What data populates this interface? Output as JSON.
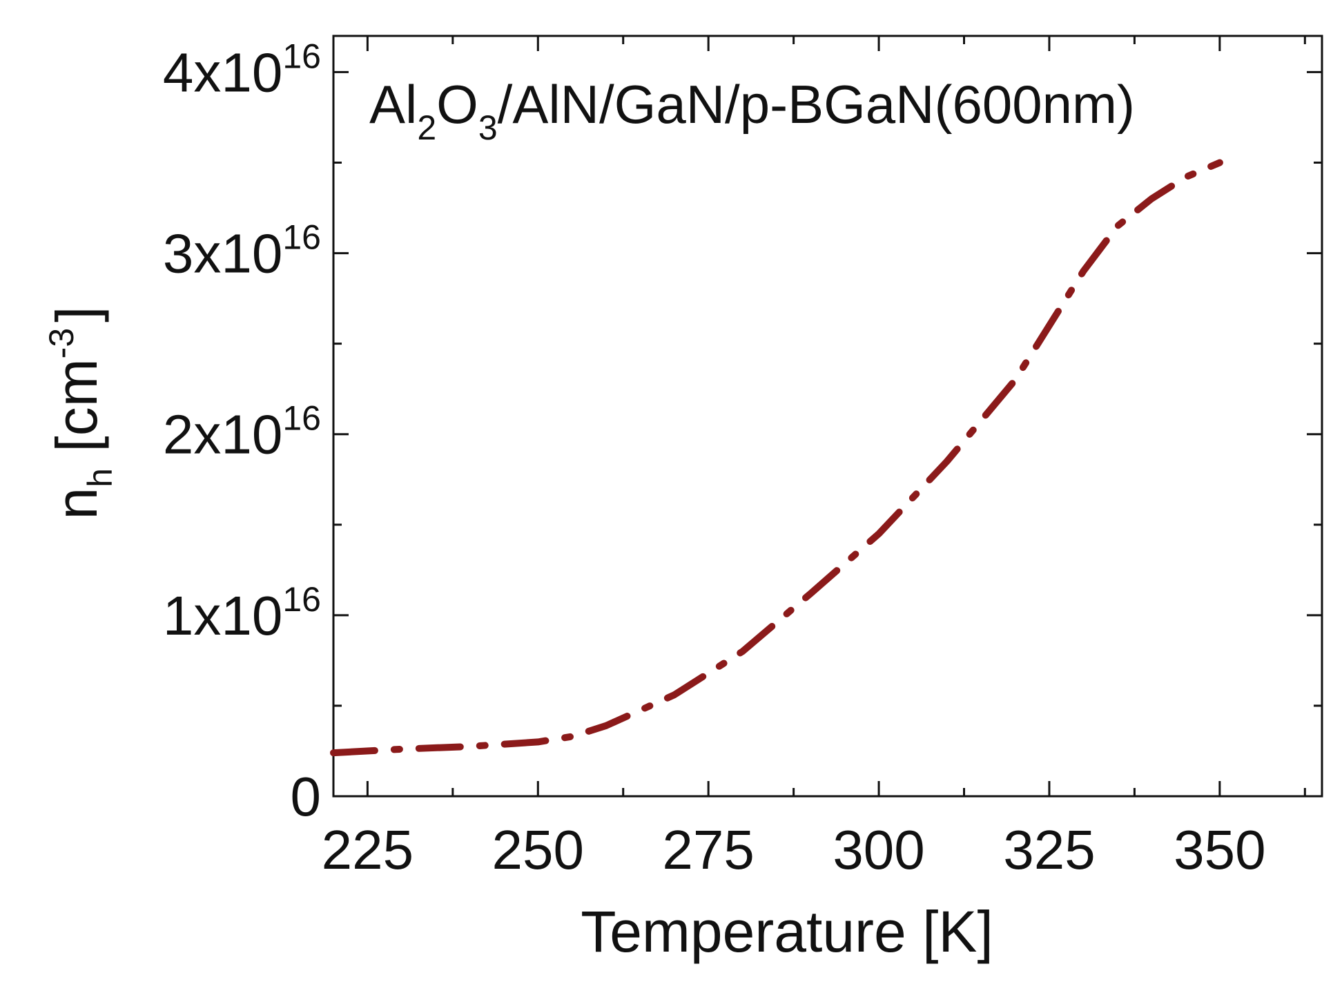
{
  "chart_data": {
    "type": "line",
    "annotation": {
      "parts": [
        {
          "text": "Al",
          "style": "normal"
        },
        {
          "text": "2",
          "style": "sub"
        },
        {
          "text": "O",
          "style": "normal"
        },
        {
          "text": "3",
          "style": "sub"
        },
        {
          "text": "/AlN/GaN/p-BGaN(600nm)",
          "style": "normal"
        }
      ]
    },
    "xlabel": "Temperature [K]",
    "ylabel": {
      "base": "n",
      "sub": "h",
      "unit_open": " [cm",
      "unit_sup": "-3",
      "unit_close": "]"
    },
    "xlim": [
      220,
      365
    ],
    "ylim": [
      0,
      4.2e+16
    ],
    "xticks": [
      {
        "value": 225,
        "label": "225"
      },
      {
        "value": 250,
        "label": "250"
      },
      {
        "value": 275,
        "label": "275"
      },
      {
        "value": 300,
        "label": "300"
      },
      {
        "value": 325,
        "label": "325"
      },
      {
        "value": 350,
        "label": "350"
      }
    ],
    "yticks": [
      {
        "value": 0,
        "base": "0",
        "exp": ""
      },
      {
        "value": 1e+16,
        "base": "1x10",
        "exp": "16"
      },
      {
        "value": 2e+16,
        "base": "2x10",
        "exp": "16"
      },
      {
        "value": 3e+16,
        "base": "3x10",
        "exp": "16"
      },
      {
        "value": 4e+16,
        "base": "4x10",
        "exp": "16"
      }
    ],
    "line_style": "dash-dot",
    "series": [
      {
        "color": "#8b1a1a",
        "x": [
          220,
          230,
          240,
          250,
          255,
          260,
          270,
          280,
          290,
          300,
          310,
          320,
          325,
          330,
          335,
          340,
          345,
          350
        ],
        "y": [
          2400000000000000.0,
          2600000000000000.0,
          2750000000000000.0,
          3000000000000000.0,
          3300000000000000.0,
          3900000000000000.0,
          5600000000000000.0,
          8000000000000000.0,
          1.12e+16,
          1.45e+16,
          1.85e+16,
          2.3e+16,
          2.6e+16,
          2.9e+16,
          3.15e+16,
          3.3e+16,
          3.42e+16,
          3.5e+16
        ]
      }
    ]
  }
}
